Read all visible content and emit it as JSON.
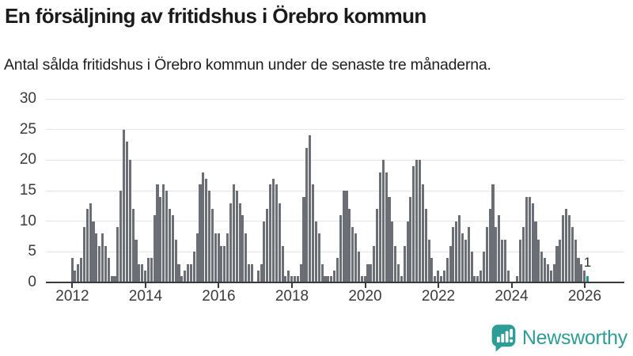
{
  "header": {
    "title": "En försäljning av fritidshus i Örebro kommun",
    "subtitle": "Antal sålda fritidshus i Örebro kommun under de senaste tre månaderna."
  },
  "chart_data": {
    "type": "bar",
    "title": "En försäljning av fritidshus i Örebro kommun",
    "ylabel": "",
    "xlabel": "",
    "x_start": "2012-01",
    "x_end": "2026-02",
    "ylim": [
      0,
      30
    ],
    "y_ticks": [
      0,
      5,
      10,
      15,
      20,
      25,
      30
    ],
    "x_tick_years": [
      2012,
      2014,
      2016,
      2018,
      2020,
      2022,
      2024,
      2026
    ],
    "grid": "horizontal",
    "legend": "none",
    "bar_color": "#6b6f75",
    "highlight_color": "#1a9a90",
    "highlight_index": 169,
    "annotation": {
      "index": 169,
      "text": "1"
    },
    "values": [
      4,
      2,
      3,
      4,
      9,
      12,
      13,
      10,
      8,
      6,
      8,
      6,
      4,
      1,
      1,
      9,
      15,
      25,
      23,
      20,
      12,
      7,
      3,
      3,
      2,
      4,
      4,
      11,
      16,
      14,
      16,
      15,
      12,
      11,
      7,
      3,
      1,
      2,
      3,
      3,
      5,
      8,
      16,
      18,
      17,
      15,
      12,
      8,
      8,
      6,
      6,
      8,
      13,
      16,
      15,
      13,
      11,
      8,
      3,
      3,
      0,
      2,
      3,
      10,
      12,
      16,
      17,
      16,
      13,
      6,
      1,
      2,
      1,
      1,
      1,
      3,
      14,
      22,
      24,
      16,
      10,
      8,
      3,
      1,
      1,
      1,
      2,
      4,
      11,
      15,
      15,
      12,
      9,
      8,
      5,
      1,
      1,
      3,
      3,
      6,
      12,
      18,
      20,
      18,
      14,
      10,
      6,
      3,
      1,
      6,
      10,
      14,
      19,
      20,
      20,
      16,
      12,
      7,
      4,
      1,
      2,
      1,
      2,
      4,
      6,
      9,
      10,
      11,
      8,
      7,
      9,
      5,
      1,
      1,
      2,
      5,
      9,
      12,
      16,
      9,
      11,
      7,
      7,
      2,
      0,
      0,
      1,
      7,
      9,
      14,
      14,
      13,
      10,
      7,
      5,
      4,
      3,
      2,
      3,
      6,
      7,
      11,
      12,
      11,
      9,
      7,
      4,
      3,
      2,
      1
    ]
  },
  "footer": {
    "brand": "Newsworthy",
    "brand_color": "#2e9d95",
    "icon": "newsworthy-chart-bubble-icon"
  }
}
